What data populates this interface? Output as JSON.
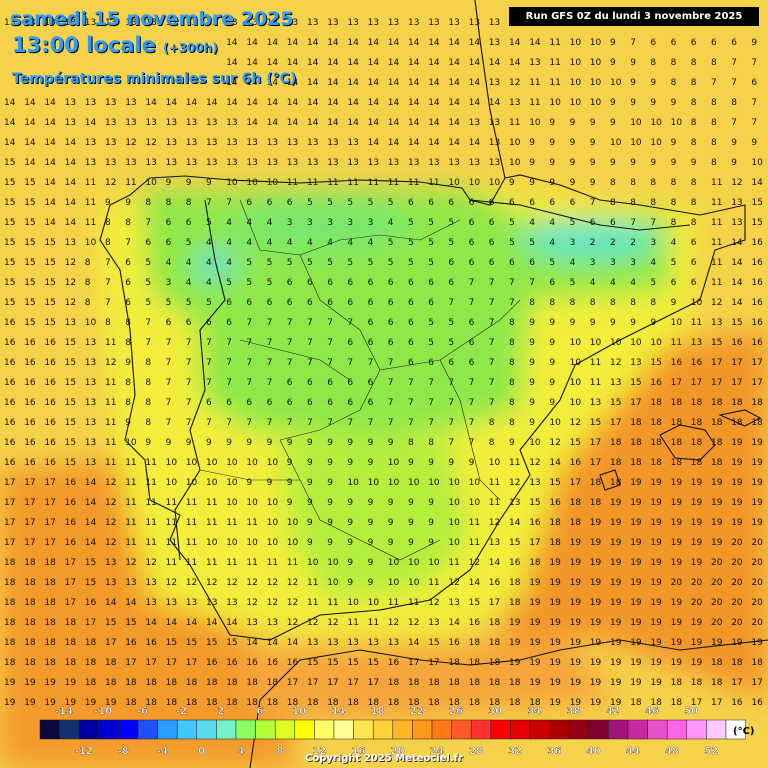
{
  "header": {
    "date_title": "samedi 15 novembre 2025",
    "time_title": "13:00 locale",
    "lead_time": "(+300h)",
    "subtitle": "Températures minimales sur 6h (°C)"
  },
  "run_info": "Run GFS 0Z du lundi 3 novembre 2025",
  "copyright": "Copyright 2025 Meteociel.fr",
  "legend": {
    "unit": "(°C)",
    "top_labels": [
      "-14",
      "-10",
      "-6",
      "-2",
      "2",
      "6",
      "10",
      "14",
      "18",
      "22",
      "26",
      "30",
      "34",
      "38",
      "42",
      "46",
      "50"
    ],
    "bottom_labels": [
      "-12",
      "-8",
      "-4",
      "0",
      "4",
      "8",
      "12",
      "16",
      "20",
      "24",
      "28",
      "32",
      "36",
      "40",
      "44",
      "48",
      "52"
    ],
    "colors": [
      "#0a0a3c",
      "#14306e",
      "#0000a0",
      "#0000d2",
      "#0000ff",
      "#1e50ff",
      "#2d9bff",
      "#41c8ff",
      "#5adcf0",
      "#78f0c8",
      "#8cff64",
      "#b4ff3c",
      "#dcff28",
      "#ffff00",
      "#ffff64",
      "#ffff96",
      "#ffe650",
      "#ffd23c",
      "#ffb428",
      "#ff961e",
      "#ff7814",
      "#ff5a28",
      "#ff3232",
      "#ff0000",
      "#e60000",
      "#c80000",
      "#aa0000",
      "#960014",
      "#820032",
      "#a01478",
      "#c828a0",
      "#e650c8",
      "#ff64e6",
      "#ff96ff",
      "#ffc8ff",
      "#ffffff"
    ]
  },
  "grid": {
    "rows": [
      "13 13 13 13 13 13 13 13 13 13 13 13 13 13 13 13 13 13 13 13 13 13 13 13 13 13 13 11 11 11 11 11 10 10 10 10 10 10",
      "13 13 13 13 13 13 13 14 14 14 14 14 14 14 14 14 14 14 14 14 14 14 14 14 13 14 14 11 10 10 9 7 6 6 6 6 6 9",
      "14 14 14 14 14 14 14 14 14 14 14 14 14 14 14 14 14 14 14 14 14 14 14 14 14 14 13 11 10 10 9 9 8 8 8 8 7 7",
      "14 14 14 14 14 15 15 15 14 14 14 14 14 14 14 14 14 14 14 14 14 14 14 14 13 12 11 11 10 10 10 9 9 8 8 7 7 6",
      "14 14 14 13 13 13 13 14 14 14 14 14 14 14 14 14 14 14 14 14 14 14 14 14 14 13 11 10 10 10 9 9 9 9 8 8 8 7",
      "14 14 14 13 14 13 13 13 13 13 13 13 14 14 14 14 14 14 14 14 14 14 14 13 13 11 10 9 9 9 9 10 10 10 8 8 7 7",
      "14 14 14 14 13 13 12 12 13 13 13 13 13 13 13 13 13 13 14 14 14 14 14 14 13 10 9 9 9 9 10 10 10 9 8 8 9 9",
      "15 14 14 14 13 13 13 13 13 13 13 13 13 13 13 13 13 13 13 13 13 13 13 13 13 10 9 9 9 9 9 9 9 9 9 8 9 10",
      "15 15 14 14 11 12 11 10 9 9 9 10 10 10 11 11 11 11 11 11 11 11 10 10 10 9 9 9 9 9 8 8 8 8 8 11 12 14",
      "15 15 14 14 11 9 9 8 8 8 7 7 6 6 6 5 5 5 5 5 6 6 6 6 6 6 6 6 6 7 8 8 8 8 8 11 13 15",
      "15 15 14 14 11 8 8 7 6 6 5 4 4 4 3 3 3 3 3 4 5 5 5 6 6 5 4 4 5 6 6 7 7 8 8 11 13 15",
      "15 15 15 13 10 8 7 6 6 5 4 4 4 4 4 4 4 4 4 5 5 5 5 6 6 5 5 4 3 2 2 2 3 4 6 11 14 16",
      "15 15 15 12 8 7 6 5 4 4 4 4 5 5 5 5 5 5 5 5 5 5 6 6 6 6 6 5 4 3 3 3 4 5 6 11 14 16",
      "15 15 15 12 8 7 6 5 3 4 4 5 5 5 6 6 6 6 6 6 6 6 6 7 7 7 7 6 5 4 4 4 5 6 6 11 14 16",
      "15 15 15 12 8 7 6 5 5 5 5 6 6 6 6 6 6 6 6 6 6 6 7 7 7 7 8 8 8 8 8 8 8 9 10 12 14 16",
      "16 15 15 13 10 8 8 7 6 6 6 6 7 7 7 7 7 7 6 6 6 5 5 6 7 8 9 9 9 9 9 9 9 10 11 13 15 16",
      "16 16 16 15 13 11 8 7 7 7 7 7 7 7 7 7 7 6 6 6 6 5 5 6 7 8 9 9 10 10 10 10 10 11 13 15 16 16",
      "16 16 16 15 13 12 9 8 7 7 7 7 7 7 7 7 7 7 7 7 6 6 6 6 7 8 9 9 10 11 12 13 15 16 16 17 17 17",
      "16 16 16 15 13 11 8 8 7 7 7 7 7 7 6 6 6 6 6 7 7 7 7 7 7 8 9 9 10 11 13 15 16 17 17 17 17 17",
      "16 16 16 15 13 11 8 8 7 7 6 6 6 6 6 6 6 6 6 7 7 7 7 7 7 8 9 9 10 13 15 17 18 18 18 18 18 18",
      "16 16 16 15 13 11 9 8 7 7 7 7 7 7 7 7 7 7 7 7 7 7 7 7 8 8 9 10 12 15 17 18 18 18 18 18 18 18",
      "16 16 16 15 13 11 10 9 9 9 9 9 9 9 9 9 9 9 9 9 8 8 7 7 8 9 10 12 15 17 18 18 18 18 18 18 19 19",
      "16 16 16 15 13 11 11 11 10 10 10 10 10 10 9 9 9 9 9 10 9 9 9 9 10 11 12 14 16 17 18 18 18 18 18 18 19 19",
      "17 17 17 16 14 12 11 11 10 10 10 10 9 9 9 9 9 10 10 10 10 10 10 10 11 12 13 15 17 18 18 19 19 19 19 19 19 19",
      "17 17 17 16 14 12 11 11 11 11 11 10 10 10 9 9 9 9 9 9 9 9 10 10 11 13 15 16 18 18 19 19 19 19 19 19 19 19",
      "17 17 17 16 14 12 11 11 11 11 11 11 11 10 10 9 9 9 9 9 9 9 10 11 12 14 16 18 18 19 19 19 19 19 19 19 19 19",
      "17 17 17 16 14 12 11 11 11 11 10 10 10 10 10 9 9 9 9 9 9 9 10 11 13 15 17 18 19 19 19 19 19 19 19 19 20 20",
      "18 18 18 17 15 13 12 12 11 11 11 11 11 11 11 10 10 9 9 10 10 10 11 12 14 16 18 19 19 19 19 19 19 19 19 20 20 20",
      "18 18 18 17 15 13 13 13 12 12 12 12 12 12 12 11 10 9 9 10 10 11 12 14 16 18 19 19 19 19 19 19 19 20 20 20 20 20",
      "18 18 18 17 16 14 14 13 13 13 13 13 12 12 12 11 11 10 10 11 11 12 13 15 17 18 19 19 19 19 19 19 19 19 20 20 20 20",
      "18 18 18 18 17 15 15 14 14 14 14 14 13 13 12 12 12 11 11 12 12 13 14 16 18 19 19 19 19 19 19 19 19 19 19 20 20 20",
      "18 18 18 18 18 17 16 16 15 15 15 15 14 14 14 13 13 13 13 13 14 15 16 18 18 19 19 19 19 19 19 19 19 19 19 19 19 19",
      "18 18 18 18 18 18 17 17 17 17 16 16 16 16 16 15 15 15 15 16 17 17 18 18 18 19 19 19 19 19 19 19 19 19 19 18 18 18",
      "19 19 19 19 18 18 18 18 18 18 18 18 18 18 17 17 17 17 17 18 18 18 18 18 18 18 19 19 19 19 19 19 19 18 18 18 17 17",
      "19 19 19 19 19 19 18 18 18 18 18 18 18 18 18 18 18 18 18 18 18 18 18 18 18 18 18 19 19 19 19 18 18 18 17 17 16 16",
      "19 19 19 19 19 19 19 19 19 19 18 18 18 18 18 18 18 18 18 18 18 18 18 18 18 18 18 18 18 18 18 18 17 17 16 15 14 14",
      "19 19 19 19 19 19 19 19 19 19 19 18 18 18 18 18 18 18 18 18 18 18 18 18 18 18 18 18 18 17 17 17 16 15 14 14 13 13",
      "19 19 20 20 19 19 19 19 19 19 19 19 19 19 19 19 19 19 19 19 19 19 19 18 18 18 18 18 18 17 17 16 16 15 14 13 13 13"
    ]
  }
}
